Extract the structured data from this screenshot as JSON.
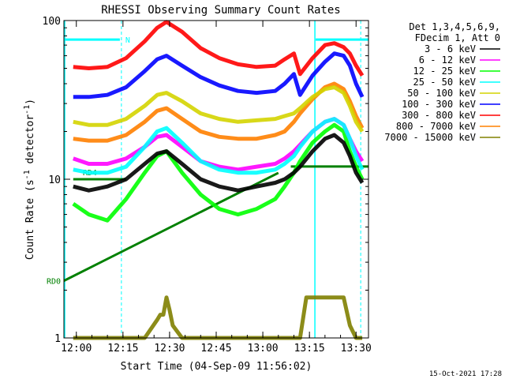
{
  "chart_data": {
    "type": "line",
    "title": "RHESSI Observing Summary Count Rates",
    "xlabel": "Start Time (04-Sep-09 11:56:02)",
    "ylabel_main": "Count Rate (s",
    "ylabel_sup1": "-1",
    "ylabel_mid": " detector",
    "ylabel_sup2": "-1",
    "ylabel_end": ")",
    "yscale": "log",
    "ylim": [
      1,
      100
    ],
    "xlim_minutes": [
      0,
      98
    ],
    "x_ticks": [
      {
        "minute": 4,
        "label": "12:00"
      },
      {
        "minute": 19,
        "label": "12:15"
      },
      {
        "minute": 34,
        "label": "12:30"
      },
      {
        "minute": 49,
        "label": "12:45"
      },
      {
        "minute": 64,
        "label": "13:00"
      },
      {
        "minute": 79,
        "label": "13:15"
      },
      {
        "minute": 94,
        "label": "13:30"
      }
    ],
    "y_ticks": [
      {
        "value": 1,
        "label": "1"
      },
      {
        "value": 10,
        "label": "10"
      },
      {
        "value": 100,
        "label": "100"
      }
    ],
    "legend_header": [
      "Det 1,3,4,5,6,9,",
      "FDecim 1, Att 0"
    ],
    "legend_position": "right",
    "series": [
      {
        "name": "3 - 6 keV",
        "color": "#000000",
        "x": [
          3,
          8,
          14,
          20,
          26,
          30,
          33,
          38,
          44,
          50,
          56,
          62,
          68,
          71,
          74,
          76,
          80,
          84,
          87,
          90,
          92,
          94,
          96
        ],
        "y": [
          9,
          8.5,
          9,
          10,
          12.5,
          14.5,
          15,
          12.5,
          10,
          9,
          8.5,
          9,
          9.5,
          10,
          11,
          12,
          15,
          18,
          19,
          17,
          14,
          11,
          9.5
        ]
      },
      {
        "name": "6 - 12 keV",
        "color": "#ff00ff",
        "x": [
          3,
          8,
          14,
          20,
          26,
          30,
          33,
          38,
          44,
          50,
          56,
          62,
          68,
          71,
          74,
          76,
          80,
          84,
          87,
          90,
          92,
          94,
          96
        ],
        "y": [
          13.5,
          12.5,
          12.5,
          13.5,
          16,
          18.5,
          19,
          16,
          13,
          12,
          11.5,
          12,
          12.5,
          13.5,
          15,
          16.5,
          20,
          23,
          24,
          22,
          18,
          15,
          13
        ]
      },
      {
        "name": "12 - 25 keV",
        "color": "#00ff00",
        "x": [
          3,
          8,
          14,
          20,
          26,
          30,
          33,
          38,
          44,
          50,
          56,
          62,
          68,
          71,
          74,
          76,
          80,
          84,
          87,
          90,
          92,
          94,
          96
        ],
        "y": [
          7,
          6,
          5.5,
          7.5,
          11,
          14,
          15,
          11,
          8,
          6.5,
          6,
          6.5,
          7.5,
          9,
          11,
          13,
          17,
          20,
          22,
          20,
          15,
          12,
          10
        ]
      },
      {
        "name": "25 - 50 keV",
        "color": "#00ffff",
        "x": [
          3,
          8,
          14,
          20,
          26,
          30,
          33,
          38,
          44,
          50,
          56,
          62,
          68,
          71,
          74,
          76,
          80,
          84,
          87,
          90,
          92,
          94,
          96
        ],
        "y": [
          11.5,
          11,
          11,
          12,
          16,
          20,
          21,
          17,
          13,
          11.5,
          11,
          11,
          11.5,
          12.5,
          14,
          16,
          20,
          23,
          24,
          22,
          18,
          14,
          11.5
        ]
      },
      {
        "name": "50 - 100 keV",
        "color": "#d4d400",
        "x": [
          3,
          8,
          14,
          20,
          26,
          30,
          33,
          38,
          44,
          50,
          56,
          62,
          68,
          71,
          74,
          76,
          80,
          84,
          87,
          90,
          92,
          94,
          96
        ],
        "y": [
          23,
          22,
          22,
          24,
          29,
          34,
          35,
          31,
          26,
          24,
          23,
          23.5,
          24,
          25,
          26,
          28,
          33,
          37,
          38,
          35,
          29,
          23,
          20
        ]
      },
      {
        "name": "100 - 300 keV",
        "color": "#0000ff",
        "x": [
          3,
          8,
          14,
          20,
          26,
          30,
          33,
          38,
          44,
          50,
          56,
          62,
          68,
          71,
          74,
          76,
          80,
          84,
          87,
          90,
          92,
          94,
          96
        ],
        "y": [
          33,
          33,
          34,
          38,
          48,
          57,
          60,
          52,
          44,
          39,
          36,
          35,
          36,
          40,
          46,
          34,
          45,
          55,
          62,
          60,
          52,
          40,
          33
        ]
      },
      {
        "name": "300 - 800 keV",
        "color": "#ff0000",
        "x": [
          3,
          8,
          14,
          20,
          26,
          30,
          33,
          38,
          44,
          50,
          56,
          62,
          68,
          71,
          74,
          76,
          80,
          84,
          87,
          90,
          92,
          94,
          96
        ],
        "y": [
          51,
          50,
          51,
          58,
          74,
          90,
          98,
          85,
          67,
          58,
          53,
          51,
          52,
          57,
          62,
          46,
          58,
          70,
          72,
          68,
          62,
          52,
          45
        ]
      },
      {
        "name": "800 - 7000 keV",
        "color": "#ff8000",
        "x": [
          3,
          8,
          14,
          20,
          26,
          30,
          33,
          38,
          44,
          50,
          56,
          62,
          68,
          71,
          74,
          76,
          80,
          84,
          87,
          90,
          92,
          94,
          96
        ],
        "y": [
          18,
          17.5,
          17.5,
          19,
          23,
          27,
          28,
          24,
          20,
          18.5,
          18,
          18,
          19,
          20,
          23,
          26,
          32,
          38,
          40,
          37,
          31,
          25,
          21
        ]
      },
      {
        "name": "7000 - 15000 keV",
        "color": "#808000",
        "x": [
          3,
          8,
          14,
          20,
          26,
          30,
          31,
          32,
          33,
          34,
          35,
          38,
          44,
          50,
          56,
          62,
          68,
          73,
          76,
          78,
          80,
          83,
          86,
          89,
          90,
          92,
          94,
          96
        ],
        "y": [
          1,
          1,
          1,
          1,
          1,
          1.3,
          1.4,
          1.4,
          1.8,
          1.5,
          1.2,
          1,
          1,
          1,
          1,
          1,
          1,
          1,
          1,
          1.8,
          1.8,
          1.8,
          1.8,
          1.8,
          1.8,
          1.2,
          1,
          1
        ]
      }
    ],
    "flags": [
      {
        "name": "RD0",
        "color": "#008000",
        "segments": [
          [
            0,
            18,
            69,
            52
          ],
          [
            73,
            54,
            98,
            54
          ]
        ]
      },
      {
        "name": "RD4",
        "color": "#008000",
        "segments": [
          [
            3,
            50,
            20,
            50
          ]
        ]
      },
      {
        "name": "N",
        "color": "#00ffff",
        "segments": [
          [
            0,
            94,
            18,
            94
          ],
          [
            81,
            94,
            98,
            94
          ]
        ]
      }
    ],
    "bands": [
      {
        "start": 0,
        "end": 18.5,
        "color": "#00ffff"
      },
      {
        "start": 80.5,
        "end": 95.5,
        "color": "#00ffff"
      }
    ]
  },
  "footer": {
    "timestamp": "15-Oct-2021 17:28"
  }
}
